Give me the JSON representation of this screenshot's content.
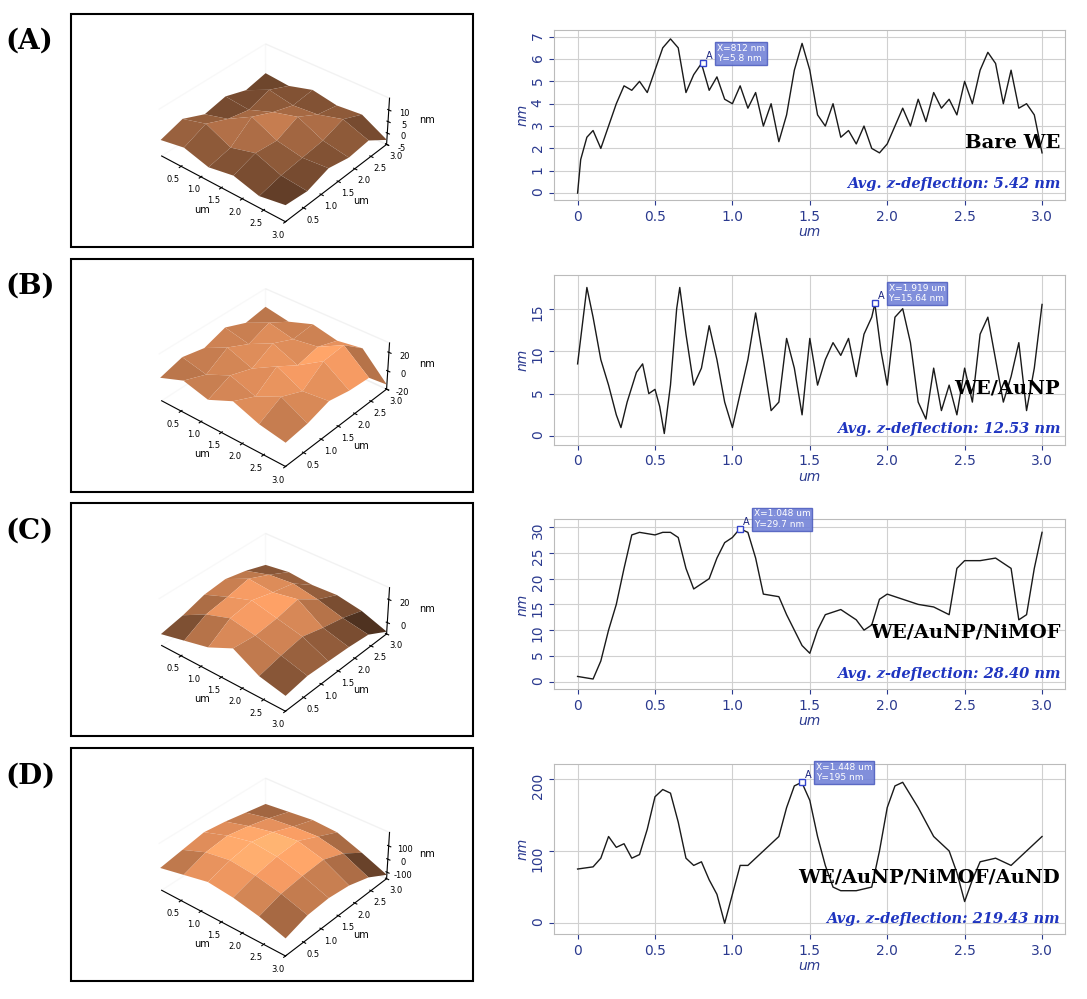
{
  "chart_data": [
    {
      "type": "line",
      "panel_label": "(A)",
      "surface": {
        "type": "surface",
        "x": [
          0,
          0.6,
          1.2,
          1.8,
          2.4,
          3.0
        ],
        "y": [
          0,
          0.6,
          1.2,
          1.8,
          2.4,
          3.0
        ],
        "z": [
          [
            2,
            4,
            1,
            3,
            0,
            2
          ],
          [
            5,
            8,
            3,
            6,
            2,
            1
          ],
          [
            1,
            4,
            10,
            5,
            3,
            4
          ],
          [
            3,
            2,
            6,
            9,
            4,
            2
          ],
          [
            0,
            5,
            3,
            4,
            7,
            3
          ],
          [
            2,
            1,
            4,
            2,
            3,
            -3
          ]
        ],
        "xlim": [
          0,
          3.0
        ],
        "ylim": [
          0,
          3.0
        ],
        "zlim": [
          -5,
          15
        ],
        "xticks": [
          0.5,
          1.0,
          1.5,
          2.0,
          2.5,
          3.0
        ],
        "yticks": [
          0.5,
          1.0,
          1.5,
          2.0,
          2.5,
          3.0
        ],
        "zticks": [
          -5,
          0,
          5,
          10
        ],
        "xlabel": "um",
        "ylabel": "um",
        "zlabel": "nm"
      },
      "x": [
        0,
        0.02,
        0.06,
        0.1,
        0.15,
        0.2,
        0.25,
        0.3,
        0.35,
        0.4,
        0.45,
        0.5,
        0.55,
        0.6,
        0.65,
        0.7,
        0.75,
        0.8,
        0.85,
        0.9,
        0.95,
        1.0,
        1.05,
        1.1,
        1.15,
        1.2,
        1.25,
        1.3,
        1.35,
        1.4,
        1.45,
        1.5,
        1.55,
        1.6,
        1.65,
        1.7,
        1.75,
        1.8,
        1.85,
        1.9,
        1.95,
        2.0,
        2.05,
        2.1,
        2.15,
        2.2,
        2.25,
        2.3,
        2.35,
        2.4,
        2.45,
        2.5,
        2.55,
        2.6,
        2.65,
        2.7,
        2.75,
        2.8,
        2.85,
        2.9,
        2.95,
        3.0
      ],
      "values": [
        0,
        1.5,
        2.5,
        2.8,
        2.0,
        3.0,
        4.0,
        4.8,
        4.6,
        5.0,
        4.5,
        5.5,
        6.5,
        6.9,
        6.5,
        4.5,
        5.3,
        5.8,
        4.6,
        5.2,
        4.2,
        4.0,
        4.8,
        3.8,
        4.5,
        3.0,
        4.0,
        2.3,
        3.5,
        5.5,
        6.7,
        5.5,
        3.5,
        3.0,
        4.0,
        2.5,
        2.8,
        2.2,
        3.0,
        2.0,
        1.8,
        2.2,
        3.0,
        3.8,
        3.0,
        4.2,
        3.2,
        4.5,
        3.8,
        4.2,
        3.5,
        5.0,
        4.0,
        5.5,
        6.3,
        5.8,
        4.0,
        5.5,
        3.8,
        4.0,
        3.5,
        1.8
      ],
      "color": "#1a1a1a",
      "grid": true,
      "xlim": [
        -0.15,
        3.15
      ],
      "ylim": [
        -0.3,
        7.3
      ],
      "xticks": [
        0,
        0.5,
        1.0,
        1.5,
        2.0,
        2.5,
        3.0
      ],
      "yticks": [
        0,
        1,
        2,
        3,
        4,
        5,
        6,
        7
      ],
      "xlabel": "um",
      "ylabel": "nm",
      "marker_point": {
        "x": 0.812,
        "y": 5.8,
        "label": "A",
        "text": [
          "X=812 nm",
          "Y=5.8 nm"
        ]
      },
      "annotations": [
        "Bare WE",
        "Avg. z-deflection: 5.42 nm"
      ]
    },
    {
      "type": "line",
      "panel_label": "(B)",
      "surface": {
        "type": "surface",
        "x": [
          0,
          0.6,
          1.2,
          1.8,
          2.4,
          3.0
        ],
        "y": [
          0,
          0.6,
          1.2,
          1.8,
          2.4,
          3.0
        ],
        "z": [
          [
            5,
            15,
            8,
            20,
            10,
            5
          ],
          [
            12,
            6,
            18,
            9,
            22,
            8
          ],
          [
            7,
            20,
            10,
            25,
            12,
            15
          ],
          [
            15,
            9,
            22,
            11,
            28,
            10
          ],
          [
            6,
            18,
            12,
            16,
            30,
            8
          ],
          [
            10,
            5,
            14,
            8,
            12,
            -15
          ]
        ],
        "xlim": [
          0,
          3.0
        ],
        "ylim": [
          0,
          3.0
        ],
        "zlim": [
          -20,
          30
        ],
        "xticks": [
          0.5,
          1.0,
          1.5,
          2.0,
          2.5,
          3.0
        ],
        "yticks": [
          0.5,
          1.0,
          1.5,
          2.0,
          2.5,
          3.0
        ],
        "zticks": [
          -20,
          0,
          20
        ],
        "xlabel": "um",
        "ylabel": "um",
        "zlabel": "nm"
      },
      "x": [
        0,
        0.03,
        0.06,
        0.1,
        0.15,
        0.2,
        0.25,
        0.28,
        0.32,
        0.38,
        0.42,
        0.46,
        0.5,
        0.53,
        0.56,
        0.6,
        0.64,
        0.66,
        0.7,
        0.75,
        0.8,
        0.85,
        0.9,
        0.95,
        1.0,
        1.05,
        1.1,
        1.15,
        1.2,
        1.25,
        1.3,
        1.35,
        1.4,
        1.45,
        1.5,
        1.55,
        1.6,
        1.65,
        1.7,
        1.75,
        1.8,
        1.85,
        1.9,
        1.92,
        1.96,
        2.0,
        2.05,
        2.1,
        2.15,
        2.2,
        2.25,
        2.3,
        2.35,
        2.4,
        2.45,
        2.5,
        2.55,
        2.6,
        2.65,
        2.7,
        2.75,
        2.8,
        2.85,
        2.9,
        2.95,
        3.0
      ],
      "values": [
        8.5,
        13,
        17.5,
        14,
        9,
        6,
        2.5,
        1,
        4,
        7.5,
        8.5,
        5,
        5.5,
        3.5,
        0.3,
        6,
        15,
        17.5,
        12,
        6,
        8,
        13,
        9,
        4,
        1,
        5,
        9,
        14.5,
        9,
        3,
        4,
        11.5,
        8,
        2.5,
        11.5,
        6,
        9,
        11,
        9.5,
        11.5,
        7,
        12,
        14,
        15.6,
        10,
        6,
        14,
        15,
        11,
        4,
        2,
        8,
        3,
        6,
        2.5,
        8,
        4,
        12,
        14,
        9,
        4,
        7,
        11,
        3,
        8,
        15.5
      ],
      "color": "#1a1a1a",
      "grid": true,
      "xlim": [
        -0.15,
        3.15
      ],
      "ylim": [
        -1,
        19
      ],
      "xticks": [
        0,
        0.5,
        1.0,
        1.5,
        2.0,
        2.5,
        3.0
      ],
      "yticks": [
        0,
        5,
        10,
        15
      ],
      "xlabel": "um",
      "ylabel": "nm",
      "marker_point": {
        "x": 1.919,
        "y": 15.64,
        "label": "A",
        "text": [
          "X=1.919 um",
          "Y=15.64 nm"
        ]
      },
      "annotations": [
        "WE/AuNP",
        "Avg. z-deflection: 12.53 nm"
      ]
    },
    {
      "type": "line",
      "panel_label": "(C)",
      "surface": {
        "type": "surface",
        "x": [
          0,
          0.6,
          1.2,
          1.8,
          2.4,
          3.0
        ],
        "y": [
          0,
          0.6,
          1.2,
          1.8,
          2.4,
          3.0
        ],
        "z": [
          [
            0,
            5,
            10,
            20,
            8,
            3
          ],
          [
            4,
            15,
            22,
            18,
            12,
            6
          ],
          [
            10,
            18,
            25,
            20,
            15,
            5
          ],
          [
            12,
            22,
            20,
            24,
            10,
            4
          ],
          [
            8,
            14,
            16,
            12,
            6,
            2
          ],
          [
            2,
            5,
            3,
            4,
            0,
            -8
          ]
        ],
        "xlim": [
          0,
          3.0
        ],
        "ylim": [
          0,
          3.0
        ],
        "zlim": [
          -10,
          30
        ],
        "xticks": [
          0.5,
          1.0,
          1.5,
          2.0,
          2.5,
          3.0
        ],
        "yticks": [
          0.5,
          1.0,
          1.5,
          2.0,
          2.5,
          3.0
        ],
        "zticks": [
          0,
          20
        ],
        "xlabel": "um",
        "ylabel": "um",
        "zlabel": "nm"
      },
      "x": [
        0,
        0.1,
        0.15,
        0.2,
        0.25,
        0.3,
        0.35,
        0.4,
        0.5,
        0.55,
        0.6,
        0.65,
        0.7,
        0.75,
        0.8,
        0.85,
        0.9,
        0.95,
        1.0,
        1.048,
        1.1,
        1.15,
        1.2,
        1.3,
        1.35,
        1.4,
        1.45,
        1.5,
        1.55,
        1.6,
        1.7,
        1.8,
        1.85,
        1.9,
        1.95,
        2.0,
        2.1,
        2.2,
        2.3,
        2.4,
        2.45,
        2.5,
        2.6,
        2.7,
        2.75,
        2.8,
        2.85,
        2.9,
        2.95,
        3.0
      ],
      "values": [
        1,
        0.5,
        4,
        10,
        15,
        22,
        28.5,
        29,
        28.5,
        29,
        29,
        28,
        22,
        18,
        19,
        20,
        24,
        27,
        28,
        29.7,
        29,
        24,
        17,
        16.5,
        13,
        10,
        7,
        5.5,
        10,
        13,
        14,
        12,
        10,
        11,
        16,
        17,
        16,
        15,
        14.5,
        13,
        22,
        23.5,
        23.5,
        24,
        23,
        22,
        12,
        13,
        22,
        29
      ],
      "color": "#1a1a1a",
      "grid": true,
      "xlim": [
        -0.15,
        3.15
      ],
      "ylim": [
        -1.5,
        31.5
      ],
      "xticks": [
        0,
        0.5,
        1.0,
        1.5,
        2.0,
        2.5,
        3.0
      ],
      "yticks": [
        0,
        5,
        10,
        15,
        20,
        25,
        30
      ],
      "xlabel": "um",
      "ylabel": "nm",
      "marker_point": {
        "x": 1.048,
        "y": 29.7,
        "label": "A",
        "text": [
          "X=1.048 um",
          "Y=29.7 nm"
        ]
      },
      "annotations": [
        "WE/AuNP/NiMOF",
        "Avg. z-deflection: 28.40 nm"
      ]
    },
    {
      "type": "line",
      "panel_label": "(D)",
      "surface": {
        "type": "surface",
        "x": [
          0,
          0.6,
          1.2,
          1.8,
          2.4,
          3.0
        ],
        "y": [
          0,
          0.6,
          1.2,
          1.8,
          2.4,
          3.0
        ],
        "z": [
          [
            20,
            60,
            100,
            80,
            40,
            -20
          ],
          [
            50,
            120,
            150,
            130,
            90,
            30
          ],
          [
            80,
            140,
            180,
            160,
            110,
            40
          ],
          [
            60,
            110,
            150,
            170,
            120,
            20
          ],
          [
            30,
            70,
            90,
            100,
            60,
            -30
          ],
          [
            0,
            20,
            40,
            30,
            -40,
            -120
          ]
        ],
        "xlim": [
          0,
          3.0
        ],
        "ylim": [
          0,
          3.0
        ],
        "zlim": [
          -150,
          200
        ],
        "xticks": [
          0.5,
          1.0,
          1.5,
          2.0,
          2.5,
          3.0
        ],
        "yticks": [
          0.5,
          1.0,
          1.5,
          2.0,
          2.5,
          3.0
        ],
        "zticks": [
          -100,
          0,
          100
        ],
        "xlabel": "um",
        "ylabel": "um",
        "zlabel": "nm"
      },
      "x": [
        0,
        0.1,
        0.15,
        0.2,
        0.25,
        0.3,
        0.35,
        0.4,
        0.45,
        0.5,
        0.55,
        0.6,
        0.65,
        0.7,
        0.75,
        0.8,
        0.85,
        0.9,
        0.95,
        1.0,
        1.05,
        1.1,
        1.2,
        1.3,
        1.35,
        1.4,
        1.448,
        1.5,
        1.55,
        1.6,
        1.65,
        1.7,
        1.8,
        1.9,
        1.95,
        2.0,
        2.05,
        2.1,
        2.2,
        2.3,
        2.4,
        2.45,
        2.5,
        2.55,
        2.6,
        2.7,
        2.8,
        2.9,
        3.0
      ],
      "values": [
        75,
        78,
        90,
        120,
        105,
        110,
        90,
        95,
        130,
        175,
        185,
        180,
        140,
        90,
        80,
        85,
        60,
        40,
        0,
        40,
        80,
        80,
        100,
        120,
        160,
        190,
        195,
        170,
        120,
        80,
        50,
        45,
        45,
        50,
        100,
        160,
        190,
        195,
        160,
        120,
        100,
        70,
        30,
        60,
        85,
        90,
        80,
        100,
        120
      ],
      "color": "#1a1a1a",
      "grid": true,
      "xlim": [
        -0.15,
        3.15
      ],
      "ylim": [
        -15,
        220
      ],
      "xticks": [
        0,
        0.5,
        1.0,
        1.5,
        2.0,
        2.5,
        3.0
      ],
      "yticks": [
        0,
        100,
        200
      ],
      "xlabel": "um",
      "ylabel": "nm",
      "marker_point": {
        "x": 1.448,
        "y": 195,
        "label": "A",
        "text": [
          "X=1.448 um",
          "Y=195 nm"
        ]
      },
      "annotations": [
        "WE/AuNP/NiMOF/AuND",
        "Avg. z-deflection: 219.43 nm"
      ]
    }
  ]
}
